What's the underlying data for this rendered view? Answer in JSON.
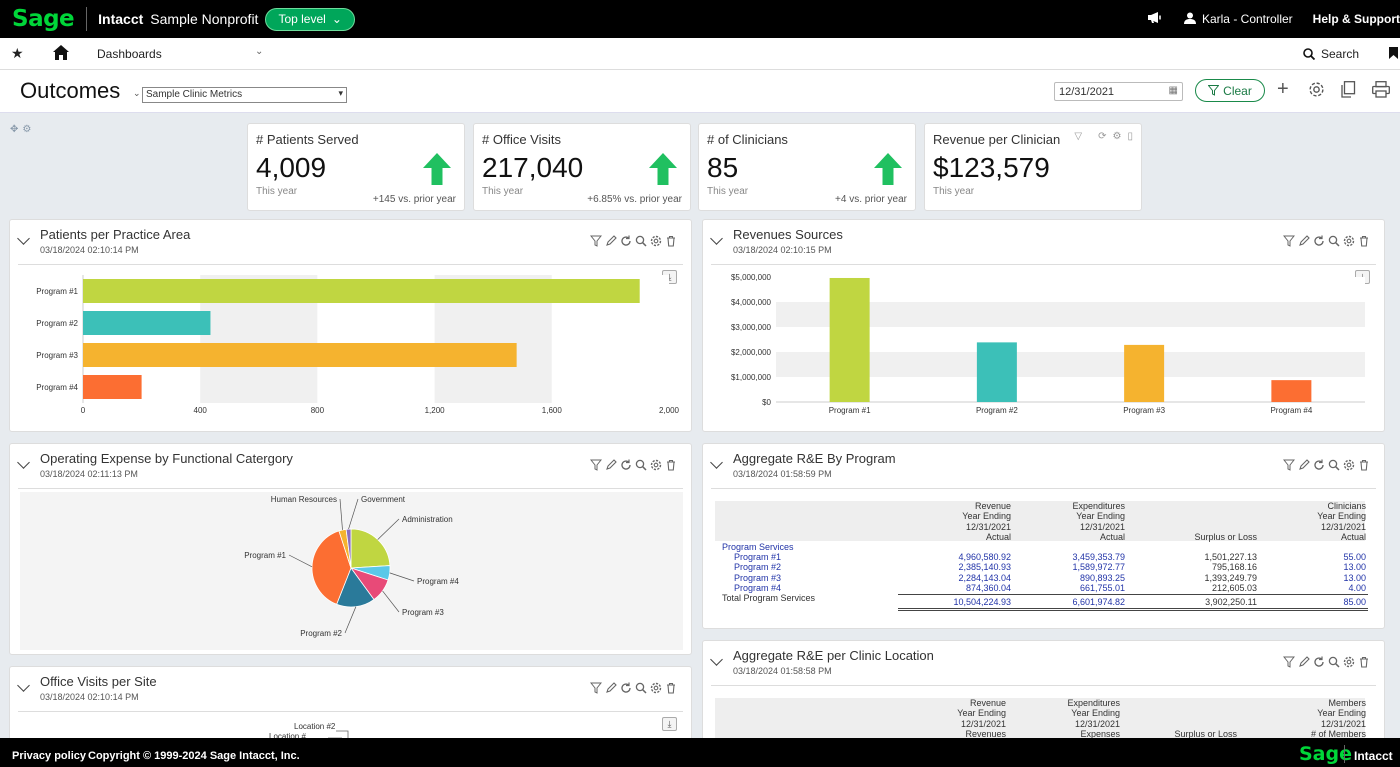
{
  "topbar": {
    "logo": "Sage",
    "brand": "Intacct",
    "company": "Sample Nonprofit",
    "level_button": "Top level",
    "user": "Karla - Controller",
    "help": "Help & Support"
  },
  "nav": {
    "dashboards": "Dashboards",
    "search": "Search"
  },
  "titlebar": {
    "title": "Outcomes",
    "dashboard_select": "Sample Clinic Metrics",
    "date": "12/31/2021",
    "clear": "Clear"
  },
  "kpis": [
    {
      "label": "# Patients Served",
      "value": "4,009",
      "sub": "This year",
      "delta": "+145 vs. prior year",
      "trend": "up"
    },
    {
      "label": "# Office Visits",
      "value": "217,040",
      "sub": "This year",
      "delta": "+6.85% vs. prior year",
      "trend": "up"
    },
    {
      "label": "# of Clinicians",
      "value": "85",
      "sub": "This year",
      "delta": "+4 vs. prior year",
      "trend": "up"
    },
    {
      "label": "Revenue per Clinician",
      "value": "$123,579",
      "sub": "This year",
      "delta": "",
      "trend": ""
    }
  ],
  "panels": {
    "patients": {
      "title": "Patients per Practice Area",
      "time": "03/18/2024 02:10:14 PM"
    },
    "revenues": {
      "title": "Revenues Sources",
      "time": "03/18/2024 02:10:15 PM"
    },
    "opex": {
      "title": "Operating Expense by Functional Catergory",
      "time": "03/18/2024 02:11:13 PM"
    },
    "aggregate": {
      "title": "Aggregate R&E By Program",
      "time": "03/18/2024 01:58:59 PM"
    },
    "visits": {
      "title": "Office Visits per Site",
      "time": "03/18/2024 02:10:14 PM"
    },
    "clinic": {
      "title": "Aggregate R&E per Clinic Location",
      "time": "03/18/2024 01:58:58 PM"
    }
  },
  "colors": {
    "green": "#c0d641",
    "teal": "#3cc0b8",
    "orange": "#f5b32f",
    "red": "#fc6e32",
    "up_arrow": "#20c060",
    "accent": "#00a65a"
  },
  "chart_data": [
    {
      "type": "bar",
      "orientation": "horizontal",
      "categories": [
        "Program #1",
        "Program #2",
        "Program #3",
        "Program #4"
      ],
      "values": [
        1900,
        435,
        1480,
        200
      ],
      "xlim": [
        0,
        2000
      ],
      "xticks": [
        "0",
        "400",
        "800",
        "1,200",
        "1,600",
        "2,000"
      ],
      "colors": [
        "#c0d641",
        "#3cc0b8",
        "#f5b32f",
        "#fc6e32"
      ]
    },
    {
      "type": "bar",
      "categories": [
        "Program #1",
        "Program #2",
        "Program #3",
        "Program #4"
      ],
      "values": [
        4960580.92,
        2385140.93,
        2284143.04,
        874360.04
      ],
      "ylim": [
        0,
        5000000
      ],
      "yticks": [
        "$0",
        "$1,000,000",
        "$2,000,000",
        "$3,000,000",
        "$4,000,000",
        "$5,000,000"
      ],
      "colors": [
        "#c0d641",
        "#3cc0b8",
        "#f5b32f",
        "#fc6e32"
      ]
    },
    {
      "type": "pie",
      "labels": [
        "Administration",
        "Program #4",
        "Program #3",
        "Program #2",
        "Program #1",
        "Human Resources",
        "Government"
      ],
      "values": [
        24,
        6,
        10,
        16,
        39,
        3,
        2
      ],
      "colors": [
        "#c0d641",
        "#5bc8e8",
        "#e84a78",
        "#2a7a9a",
        "#fc6e32",
        "#f5b32f",
        "#8a6ec0"
      ]
    },
    {
      "type": "table",
      "headers": [
        [
          "Revenue",
          "Year Ending",
          "12/31/2021",
          "Actual"
        ],
        [
          "Expenditures",
          "Year Ending",
          "12/31/2021",
          "Actual"
        ],
        [
          "Surplus or Loss"
        ],
        [
          "Clinicians",
          "Year Ending",
          "12/31/2021",
          "Actual"
        ]
      ],
      "section": "Program Services",
      "rows": [
        {
          "label": "Program #1",
          "revenue": "4,960,580.92",
          "expend": "3,459,353.79",
          "surplus": "1,501,227.13",
          "clinicians": "55.00"
        },
        {
          "label": "Program #2",
          "revenue": "2,385,140.93",
          "expend": "1,589,972.77",
          "surplus": "795,168.16",
          "clinicians": "13.00"
        },
        {
          "label": "Program #3",
          "revenue": "2,284,143.04",
          "expend": "890,893.25",
          "surplus": "1,393,249.79",
          "clinicians": "13.00"
        },
        {
          "label": "Program #4",
          "revenue": "874,360.04",
          "expend": "661,755.01",
          "surplus": "212,605.03",
          "clinicians": "4.00"
        }
      ],
      "total": {
        "label": "Total Program Services",
        "revenue": "10,504,224.93",
        "expend": "6,601,974.82",
        "surplus": "3,902,250.11",
        "clinicians": "85.00"
      }
    },
    {
      "type": "table",
      "headers": [
        [
          "Revenue",
          "Year Ending",
          "12/31/2021",
          "Revenues"
        ],
        [
          "Expenditures",
          "Year Ending",
          "12/31/2021",
          "Expenses"
        ],
        [
          "Surplus or Loss"
        ],
        [
          "Members",
          "Year Ending",
          "12/31/2021",
          "# of Members"
        ]
      ]
    }
  ],
  "visits_labels": [
    "Location #2",
    "Location #"
  ],
  "footer": {
    "privacy": "Privacy policy",
    "copyright": "Copyright © 1999-2024 Sage Intacct, Inc.",
    "logo": "Sage",
    "brand": "Intacct"
  }
}
